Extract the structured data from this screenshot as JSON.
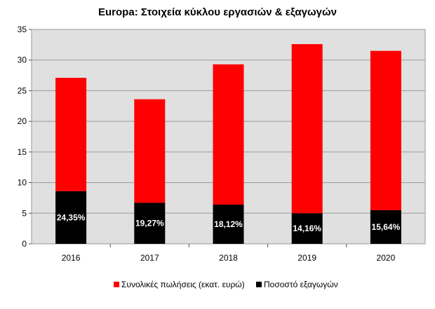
{
  "chart_data": {
    "type": "bar",
    "stacked": true,
    "title": "Europa: Στοιχεία κύκλου εργασιών & εξαγωγών",
    "categories": [
      "2016",
      "2017",
      "2018",
      "2019",
      "2020"
    ],
    "series": [
      {
        "name": "Ποσοστό εξαγωγών",
        "values": [
          8.6,
          6.7,
          6.4,
          5.0,
          5.5
        ],
        "color": "#000000",
        "labels": [
          "24,35%",
          "19,27%",
          "18,12%",
          "14,16%",
          "15,64%"
        ]
      },
      {
        "name": "Συνολικές πωλήσεις (εκατ. ευρώ)",
        "values": [
          18.5,
          16.9,
          22.9,
          27.6,
          26.0
        ],
        "color": "#ff0000"
      }
    ],
    "totals": [
      27.1,
      23.6,
      29.3,
      32.6,
      31.5
    ],
    "ylim": [
      0,
      35
    ],
    "yticks": [
      0,
      5,
      10,
      15,
      20,
      25,
      30,
      35
    ],
    "grid": true,
    "plot_background": "#e0e0e0",
    "legend_position": "bottom"
  }
}
